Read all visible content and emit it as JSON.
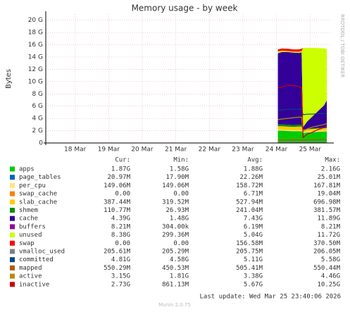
{
  "chart_data": {
    "type": "area",
    "title": "Memory usage - by week",
    "y_label": "Bytes",
    "side_text": "RRDTOOL / TOBI OETIKER",
    "x": [
      157,
      160,
      164,
      168,
      172,
      174,
      175,
      178,
      182,
      186,
      190,
      192
    ],
    "xlim": [
      -9,
      195
    ],
    "xticks": [
      {
        "value": 12,
        "label": "18 Mar"
      },
      {
        "value": 36,
        "label": "19 Mar"
      },
      {
        "value": 60,
        "label": "20 Mar"
      },
      {
        "value": 84,
        "label": "21 Mar"
      },
      {
        "value": 108,
        "label": "22 Mar"
      },
      {
        "value": 132,
        "label": "23 Mar"
      },
      {
        "value": 156,
        "label": "24 Mar"
      },
      {
        "value": 180,
        "label": "25 Mar"
      }
    ],
    "ylim": [
      0,
      21
    ],
    "yticks": [
      0,
      {
        "value": 2,
        "label": "2 G"
      },
      {
        "value": 4,
        "label": "4 G"
      },
      {
        "value": 6,
        "label": "6 G"
      },
      {
        "value": 8,
        "label": "8 G"
      },
      {
        "value": 10,
        "label": "10 G"
      },
      {
        "value": 12,
        "label": "12 G"
      },
      {
        "value": 14,
        "label": "14 G"
      },
      {
        "value": 16,
        "label": "16 G"
      },
      {
        "value": 18,
        "label": "18 G"
      },
      {
        "value": 20,
        "label": "20 G"
      }
    ],
    "grid": true,
    "columns": [
      "Cur:",
      "Min:",
      "Avg:",
      "Max:"
    ],
    "series": [
      {
        "name": "apps",
        "color": "#00cc00",
        "mark": "area",
        "values": [
          2.0,
          2.0,
          1.95,
          1.9,
          1.9,
          1.9,
          1.6,
          1.7,
          1.75,
          1.8,
          1.85,
          1.87
        ],
        "stats": [
          "1.87G",
          "1.58G",
          "1.88G",
          "2.16G"
        ]
      },
      {
        "name": "page_tables",
        "color": "#0066b3",
        "mark": "area",
        "values": [
          0.02,
          0.02,
          0.02,
          0.02,
          0.02,
          0.02,
          0.02,
          0.02,
          0.02,
          0.02,
          0.02,
          0.02
        ],
        "stats": [
          "20.97M",
          "17.90M",
          "22.26M",
          "25.01M"
        ]
      },
      {
        "name": "per_cpu",
        "color": "#ffe680",
        "mark": "area",
        "values": [
          0.15,
          0.15,
          0.15,
          0.15,
          0.15,
          0.15,
          0.15,
          0.15,
          0.15,
          0.15,
          0.15,
          0.15
        ],
        "stats": [
          "149.06M",
          "149.06M",
          "158.72M",
          "167.81M"
        ]
      },
      {
        "name": "swap_cache",
        "color": "#ff8000",
        "mark": "area",
        "values": [
          0,
          0,
          0,
          0,
          0,
          0,
          0,
          0,
          0,
          0,
          0,
          0
        ],
        "stats": [
          "0.00",
          "0.00",
          "6.71M",
          "19.04M"
        ]
      },
      {
        "name": "slab_cache",
        "color": "#ffcc00",
        "mark": "area",
        "values": [
          0.55,
          0.55,
          0.55,
          0.55,
          0.6,
          0.6,
          0.35,
          0.35,
          0.37,
          0.38,
          0.38,
          0.39
        ],
        "stats": [
          "387.44M",
          "319.52M",
          "527.94M",
          "696.98M"
        ]
      },
      {
        "name": "shmem",
        "color": "#008f00",
        "mark": "area",
        "values": [
          0.3,
          0.3,
          0.3,
          0.3,
          0.3,
          0.3,
          0.05,
          0.08,
          0.09,
          0.1,
          0.11,
          0.11
        ],
        "stats": [
          "110.77M",
          "26.93M",
          "241.04M",
          "381.57M"
        ]
      },
      {
        "name": "cache",
        "color": "#330099",
        "mark": "area",
        "values": [
          11.6,
          11.8,
          11.85,
          11.8,
          11.7,
          11.8,
          0.4,
          1.2,
          2.0,
          2.8,
          3.6,
          4.39
        ],
        "stats": [
          "4.39G",
          "1.48G",
          "7.43G",
          "11.89G"
        ]
      },
      {
        "name": "buffers",
        "color": "#990099",
        "mark": "area",
        "values": [
          0.008,
          0.008,
          0.008,
          0.008,
          0.008,
          0.008,
          0.008,
          0.008,
          0.008,
          0.008,
          0.008,
          0.008
        ],
        "stats": [
          "8.21M",
          "304.00k",
          "6.19M",
          "8.21M"
        ]
      },
      {
        "name": "unused",
        "color": "#ccff00",
        "mark": "area",
        "values": [
          0.3,
          0.2,
          0.15,
          0.15,
          0.2,
          0.2,
          12.9,
          12.0,
          11.1,
          10.2,
          9.3,
          8.38
        ],
        "stats": [
          "8.38G",
          "299.36M",
          "5.04G",
          "11.72G"
        ]
      },
      {
        "name": "swap",
        "color": "#ff0000",
        "mark": "area",
        "values": [
          0.3,
          0.37,
          0.37,
          0.37,
          0.37,
          0.37,
          0,
          0,
          0,
          0,
          0,
          0
        ],
        "stats": [
          "0.00",
          "0.00",
          "156.58M",
          "370.50M"
        ]
      },
      {
        "name": "vmalloc_used",
        "color": "#808080",
        "mark": "line",
        "values": [
          0.2,
          0.2,
          0.2,
          0.2,
          0.2,
          0.2,
          0.2,
          0.2,
          0.2,
          0.2,
          0.2,
          0.2
        ],
        "stats": [
          "205.61M",
          "205.29M",
          "205.75M",
          "206.05M"
        ]
      },
      {
        "name": "committed",
        "color": "#00487d",
        "mark": "line",
        "values": [
          5.3,
          5.4,
          5.5,
          5.5,
          5.5,
          5.5,
          4.6,
          4.7,
          4.7,
          4.8,
          4.8,
          4.81
        ],
        "stats": [
          "4.81G",
          "4.58G",
          "5.11G",
          "5.58G"
        ]
      },
      {
        "name": "mapped",
        "color": "#b35a00",
        "mark": "line",
        "values": [
          0.5,
          0.5,
          0.5,
          0.5,
          0.5,
          0.5,
          0.45,
          0.5,
          0.52,
          0.54,
          0.55,
          0.55
        ],
        "stats": [
          "550.29M",
          "450.53M",
          "505.41M",
          "550.44M"
        ]
      },
      {
        "name": "active",
        "color": "#b38f00",
        "mark": "line",
        "values": [
          3.8,
          3.9,
          4.0,
          4.1,
          4.2,
          4.2,
          1.9,
          2.3,
          2.6,
          2.8,
          3.0,
          3.15
        ],
        "stats": [
          "3.15G",
          "1.81G",
          "3.38G",
          "4.46G"
        ]
      },
      {
        "name": "inactive",
        "color": "#cc0000",
        "mark": "line",
        "values": [
          9.0,
          9.1,
          9.4,
          9.3,
          9.2,
          9.0,
          0.9,
          1.4,
          1.8,
          2.2,
          2.5,
          2.73
        ],
        "stats": [
          "2.73G",
          "861.13M",
          "5.67G",
          "10.25G"
        ]
      }
    ],
    "last_update": "Last update: Wed Mar 25 23:40:06 2026",
    "footer": "Munin 2.0.75"
  }
}
